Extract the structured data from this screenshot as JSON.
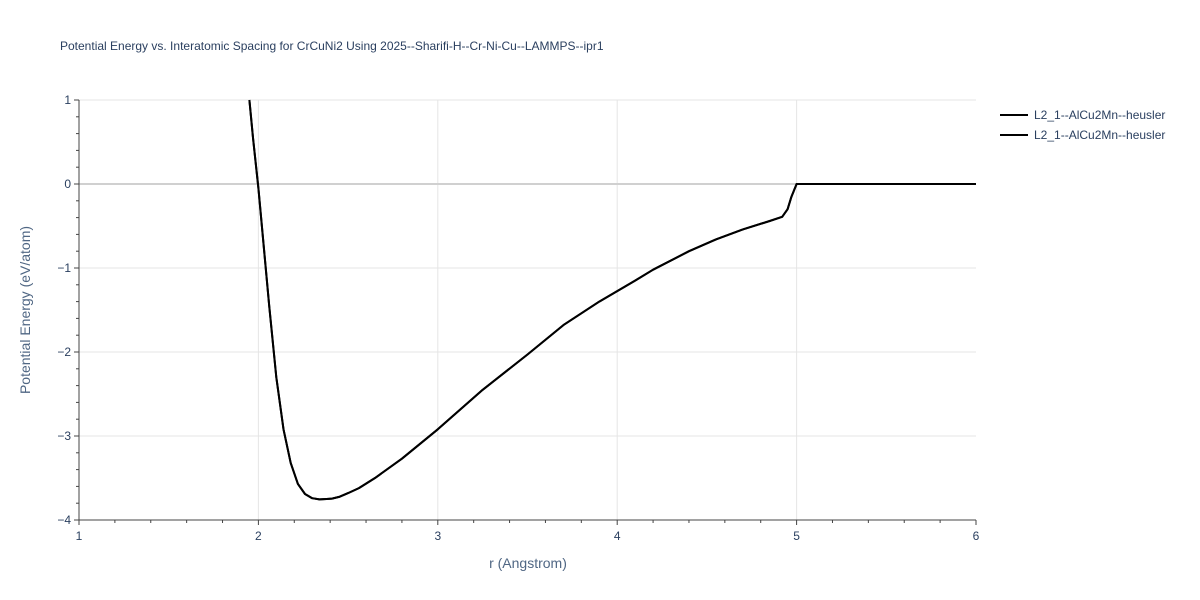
{
  "chart_data": {
    "type": "line",
    "title": "Potential Energy vs. Interatomic Spacing for CrCuNi2 Using 2025--Sharifi-H--Cr-Ni-Cu--LAMMPS--ipr1",
    "xlabel": "r (Angstrom)",
    "ylabel": "Potential Energy (eV/atom)",
    "xlim": [
      1,
      6
    ],
    "ylim": [
      -4,
      1
    ],
    "x_ticks": [
      "1",
      "2",
      "3",
      "4",
      "5",
      "6"
    ],
    "y_ticks": [
      "1",
      "0",
      "−1",
      "−2",
      "−3",
      "−4"
    ],
    "grid": true,
    "legend_position": "top-right",
    "series": [
      {
        "name": "L2_1--AlCu2Mn--heusler",
        "color": "#000000",
        "x": [
          1.95,
          1.97,
          2.0,
          2.03,
          2.06,
          2.1,
          2.14,
          2.18,
          2.22,
          2.26,
          2.3,
          2.34,
          2.38,
          2.41,
          2.45,
          2.5,
          2.56,
          2.65,
          2.8,
          3.0,
          3.25,
          3.5,
          3.7,
          3.9,
          4.1,
          4.2,
          4.4,
          4.55,
          4.7,
          4.85,
          4.92,
          4.95,
          4.97,
          5.0,
          5.5,
          6.0
        ],
        "y": [
          1.0,
          0.55,
          -0.05,
          -0.75,
          -1.45,
          -2.3,
          -2.92,
          -3.32,
          -3.57,
          -3.69,
          -3.74,
          -3.755,
          -3.75,
          -3.745,
          -3.725,
          -3.68,
          -3.62,
          -3.5,
          -3.27,
          -2.92,
          -2.45,
          -2.03,
          -1.68,
          -1.4,
          -1.15,
          -1.02,
          -0.8,
          -0.66,
          -0.54,
          -0.44,
          -0.39,
          -0.3,
          -0.16,
          0.0,
          0.0,
          0.0
        ]
      },
      {
        "name": "L2_1--AlCu2Mn--heusler",
        "color": "#000000",
        "x": [
          1.95,
          1.97,
          2.0,
          2.03,
          2.06,
          2.1,
          2.14,
          2.18,
          2.22,
          2.26,
          2.3,
          2.34,
          2.38,
          2.41,
          2.45,
          2.5,
          2.56,
          2.65,
          2.8,
          3.0,
          3.25,
          3.5,
          3.7,
          3.9,
          4.1,
          4.2,
          4.4,
          4.55,
          4.7,
          4.85,
          4.92,
          4.95,
          4.97,
          5.0,
          5.5,
          6.0
        ],
        "y": [
          1.0,
          0.55,
          -0.05,
          -0.75,
          -1.45,
          -2.3,
          -2.92,
          -3.32,
          -3.57,
          -3.69,
          -3.74,
          -3.755,
          -3.75,
          -3.745,
          -3.725,
          -3.68,
          -3.62,
          -3.5,
          -3.27,
          -2.92,
          -2.45,
          -2.03,
          -1.68,
          -1.4,
          -1.15,
          -1.02,
          -0.8,
          -0.66,
          -0.54,
          -0.44,
          -0.39,
          -0.3,
          -0.16,
          0.0,
          0.0,
          0.0
        ]
      }
    ]
  }
}
